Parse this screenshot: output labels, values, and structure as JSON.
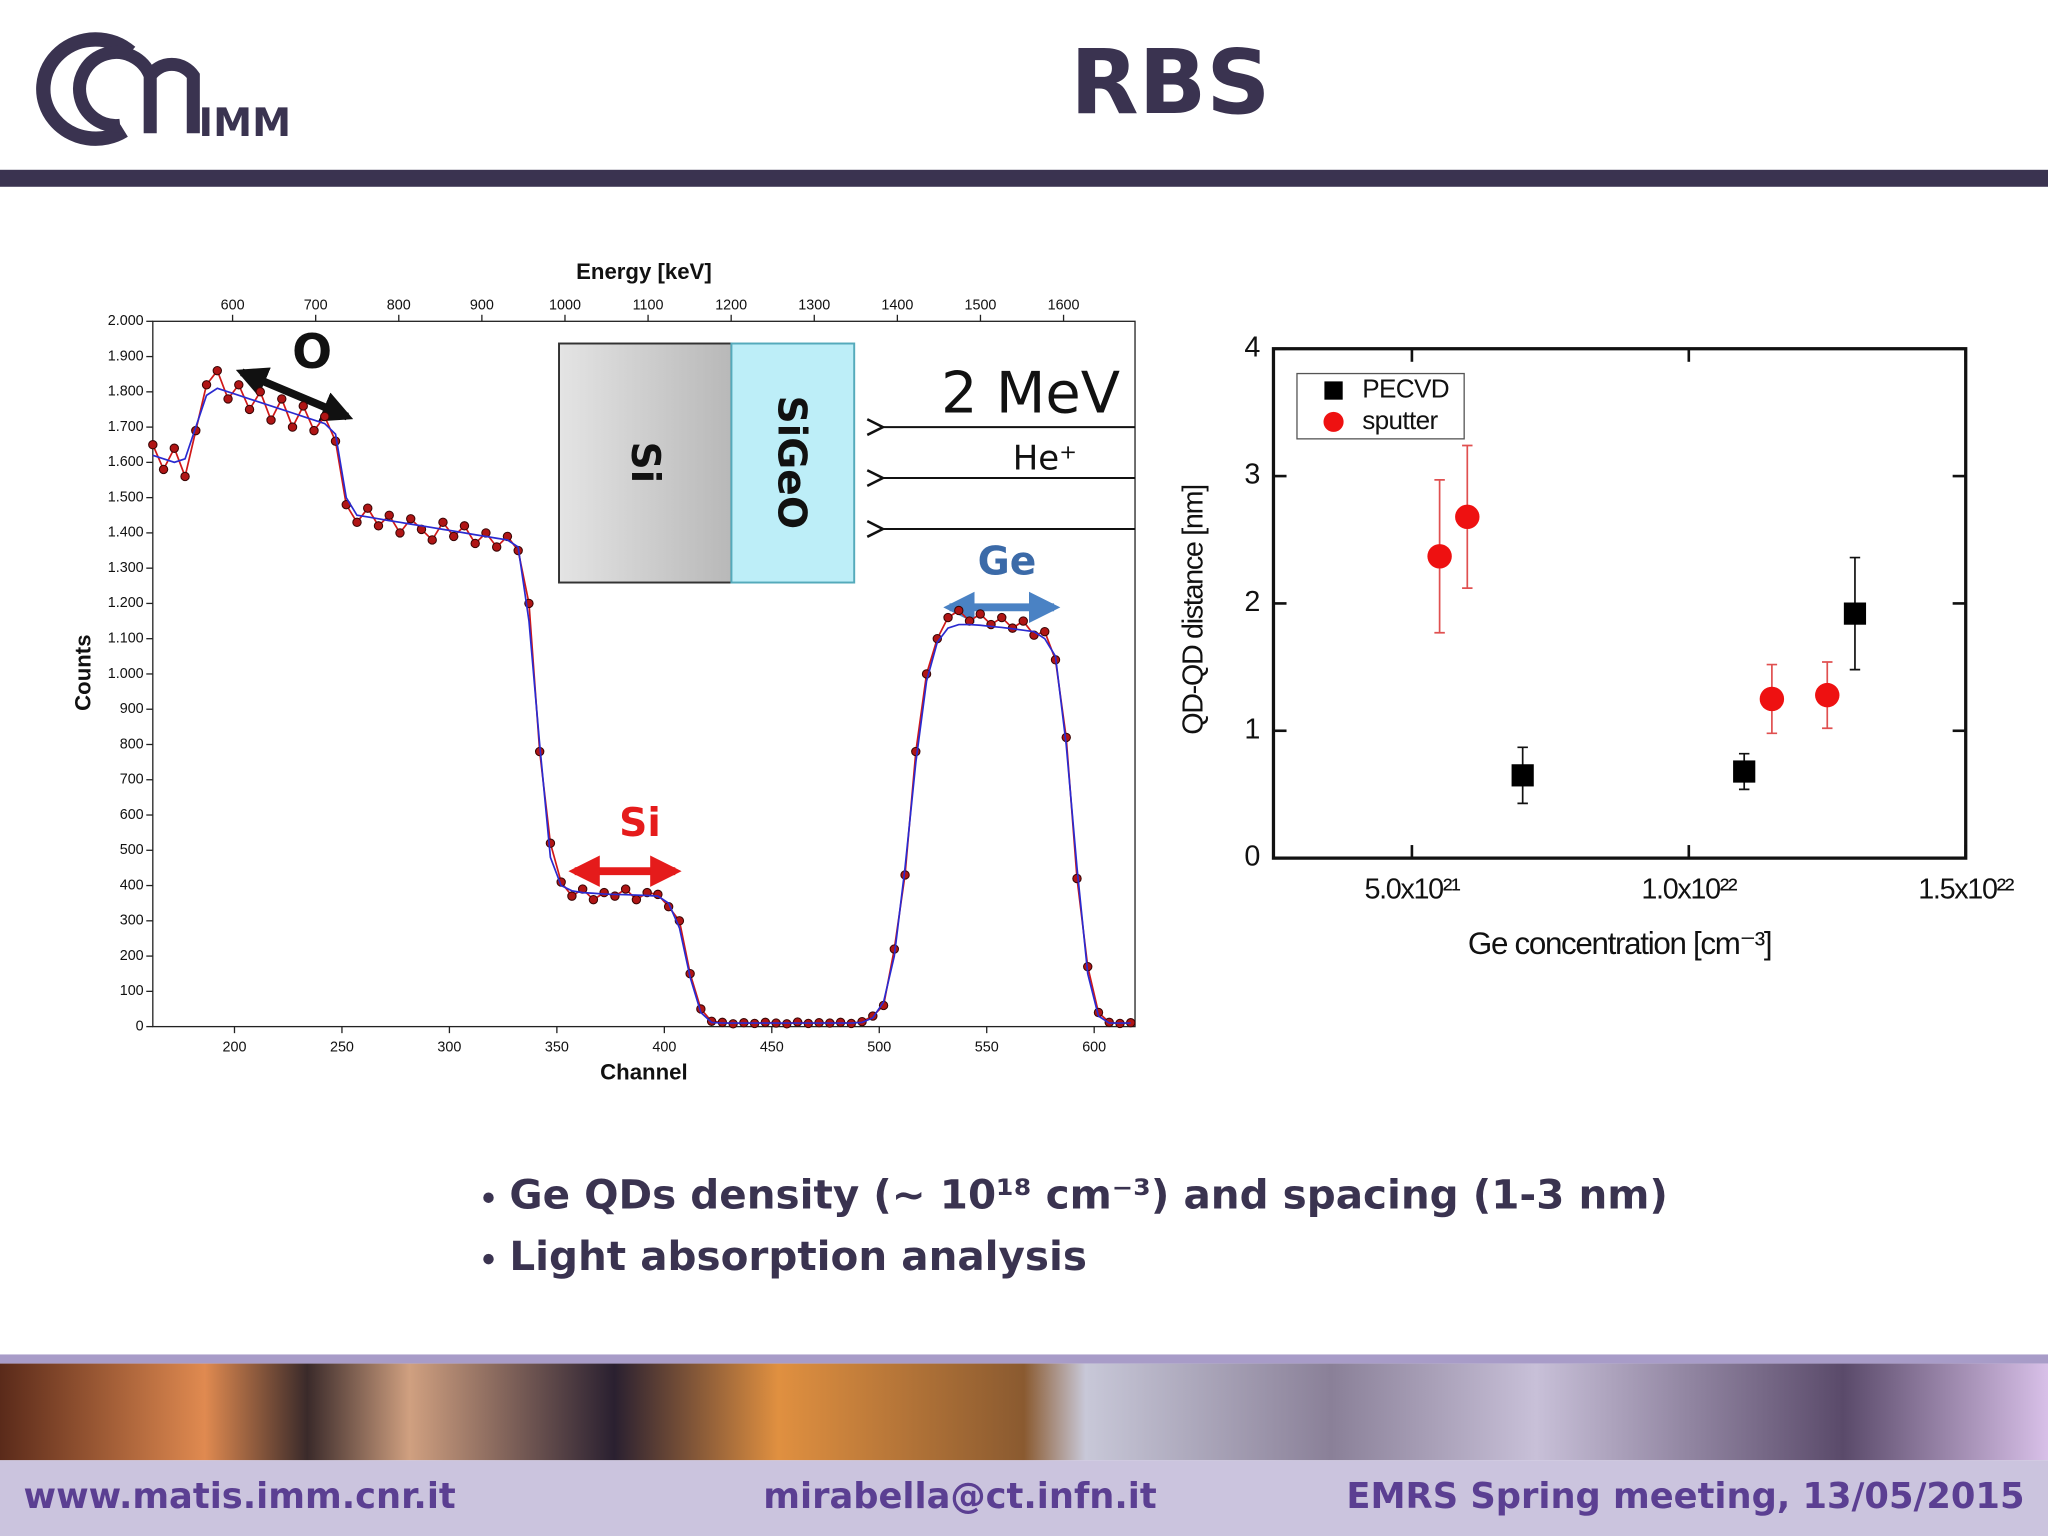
{
  "header": {
    "logo_text": "IMM",
    "title": "RBS"
  },
  "chart_data": [
    {
      "type": "line",
      "xlabel": "Channel",
      "x2label": "Energy [keV]",
      "ylabel": "Counts",
      "xlim": [
        162,
        619
      ],
      "xticks": [
        200,
        250,
        300,
        350,
        400,
        450,
        500,
        550,
        600
      ],
      "x2lim": [
        504,
        1686
      ],
      "x2ticks": [
        600,
        700,
        800,
        900,
        1000,
        1100,
        1200,
        1300,
        1400,
        1500,
        1600
      ],
      "ylim": [
        0,
        2000
      ],
      "yticks": [
        0,
        100,
        200,
        300,
        400,
        500,
        600,
        700,
        800,
        900,
        {
          "value": 1000,
          "label": "1.000"
        },
        {
          "value": 1100,
          "label": "1.100"
        },
        {
          "value": 1200,
          "label": "1.200"
        },
        {
          "value": 1300,
          "label": "1.300"
        },
        {
          "value": 1400,
          "label": "1.400"
        },
        {
          "value": 1500,
          "label": "1.500"
        },
        {
          "value": 1600,
          "label": "1.600"
        },
        {
          "value": 1700,
          "label": "1.700"
        },
        {
          "value": 1800,
          "label": "1.800"
        },
        {
          "value": 1900,
          "label": "1.900"
        },
        {
          "value": 2000,
          "label": "2.000"
        }
      ],
      "x": [
        162,
        167,
        172,
        177,
        182,
        187,
        192,
        197,
        202,
        207,
        212,
        217,
        222,
        227,
        232,
        237,
        242,
        247,
        252,
        257,
        262,
        267,
        272,
        277,
        282,
        287,
        292,
        297,
        302,
        307,
        312,
        317,
        322,
        327,
        332,
        337,
        342,
        347,
        352,
        357,
        362,
        367,
        372,
        377,
        382,
        387,
        392,
        397,
        402,
        407,
        412,
        417,
        422,
        427,
        432,
        437,
        442,
        447,
        452,
        457,
        462,
        467,
        472,
        477,
        482,
        487,
        492,
        497,
        502,
        507,
        512,
        517,
        522,
        527,
        532,
        537,
        542,
        547,
        552,
        557,
        562,
        567,
        572,
        577,
        582,
        587,
        592,
        597,
        602,
        607,
        612,
        617
      ],
      "series": [
        {
          "color": "#d01818",
          "marker": "circle",
          "values": [
            1650,
            1580,
            1640,
            1560,
            1690,
            1820,
            1860,
            1780,
            1820,
            1750,
            1800,
            1720,
            1780,
            1700,
            1760,
            1690,
            1730,
            1660,
            1480,
            1430,
            1470,
            1420,
            1450,
            1400,
            1440,
            1410,
            1380,
            1430,
            1390,
            1420,
            1370,
            1400,
            1360,
            1390,
            1350,
            1200,
            780,
            520,
            410,
            370,
            390,
            360,
            380,
            370,
            390,
            360,
            380,
            375,
            340,
            300,
            150,
            50,
            15,
            12,
            8,
            11,
            9,
            12,
            10,
            8,
            13,
            9,
            11,
            10,
            12,
            9,
            14,
            30,
            60,
            220,
            430,
            780,
            1000,
            1100,
            1160,
            1180,
            1150,
            1170,
            1140,
            1160,
            1130,
            1150,
            1110,
            1120,
            1040,
            820,
            420,
            170,
            40,
            12,
            9,
            11
          ]
        },
        {
          "color": "#2a2ad0",
          "values": [
            1620,
            1610,
            1600,
            1610,
            1700,
            1790,
            1810,
            1800,
            1790,
            1780,
            1770,
            1760,
            1750,
            1740,
            1730,
            1720,
            1710,
            1680,
            1500,
            1450,
            1445,
            1440,
            1435,
            1430,
            1425,
            1420,
            1415,
            1410,
            1405,
            1400,
            1395,
            1390,
            1385,
            1380,
            1360,
            1150,
            800,
            480,
            400,
            385,
            380,
            378,
            376,
            375,
            374,
            373,
            372,
            370,
            350,
            280,
            140,
            40,
            12,
            10,
            10,
            10,
            10,
            10,
            10,
            10,
            10,
            10,
            10,
            10,
            10,
            10,
            12,
            25,
            70,
            200,
            450,
            750,
            980,
            1090,
            1130,
            1140,
            1140,
            1138,
            1135,
            1132,
            1128,
            1124,
            1120,
            1100,
            1050,
            800,
            450,
            150,
            30,
            10,
            10,
            10
          ]
        }
      ],
      "annotations": [
        "O",
        "Si",
        "Ge"
      ],
      "schematic": {
        "layers": [
          "Si",
          "SiGeO"
        ],
        "beam_energy": "2 MeV",
        "ion": "He⁺"
      }
    },
    {
      "type": "scatter",
      "xlabel": "Ge concentration [cm⁻³]",
      "ylabel": "QD-QD distance [nm]",
      "xlim": [
        2.5e+21,
        1.5e+22
      ],
      "xticks": [
        {
          "value": 5e+21,
          "label": "5.0x10²¹"
        },
        {
          "value": 1e+22,
          "label": "1.0x10²²"
        },
        {
          "value": 1.5e+22,
          "label": "1.5x10²²"
        }
      ],
      "ylim": [
        0,
        4
      ],
      "yticks": [
        0,
        1,
        2,
        3,
        4
      ],
      "legend": "upper left",
      "series": [
        {
          "name": "PECVD",
          "color": "#000000",
          "marker": "square",
          "x": [
            7e+21,
            1.1e+22,
            1.3e+22
          ],
          "values": [
            0.65,
            0.68,
            1.92
          ],
          "errors": [
            0.22,
            0.14,
            0.44
          ]
        },
        {
          "name": "sputter",
          "color": "#ee1111",
          "marker": "circle",
          "x": [
            5.5e+21,
            6e+21,
            1.15e+22,
            1.25e+22
          ],
          "values": [
            2.37,
            2.68,
            1.25,
            1.28
          ],
          "errors": [
            0.6,
            0.56,
            0.27,
            0.26
          ]
        }
      ]
    }
  ],
  "bullets": [
    "Ge QDs density (~ 10¹⁸ cm⁻³) and spacing (1-3 nm)",
    "Light absorption analysis"
  ],
  "footer": [
    "www.matis.imm.cnr.it",
    "mirabella@ct.infn.it",
    "EMRS Spring meeting, 13/05/2015"
  ]
}
